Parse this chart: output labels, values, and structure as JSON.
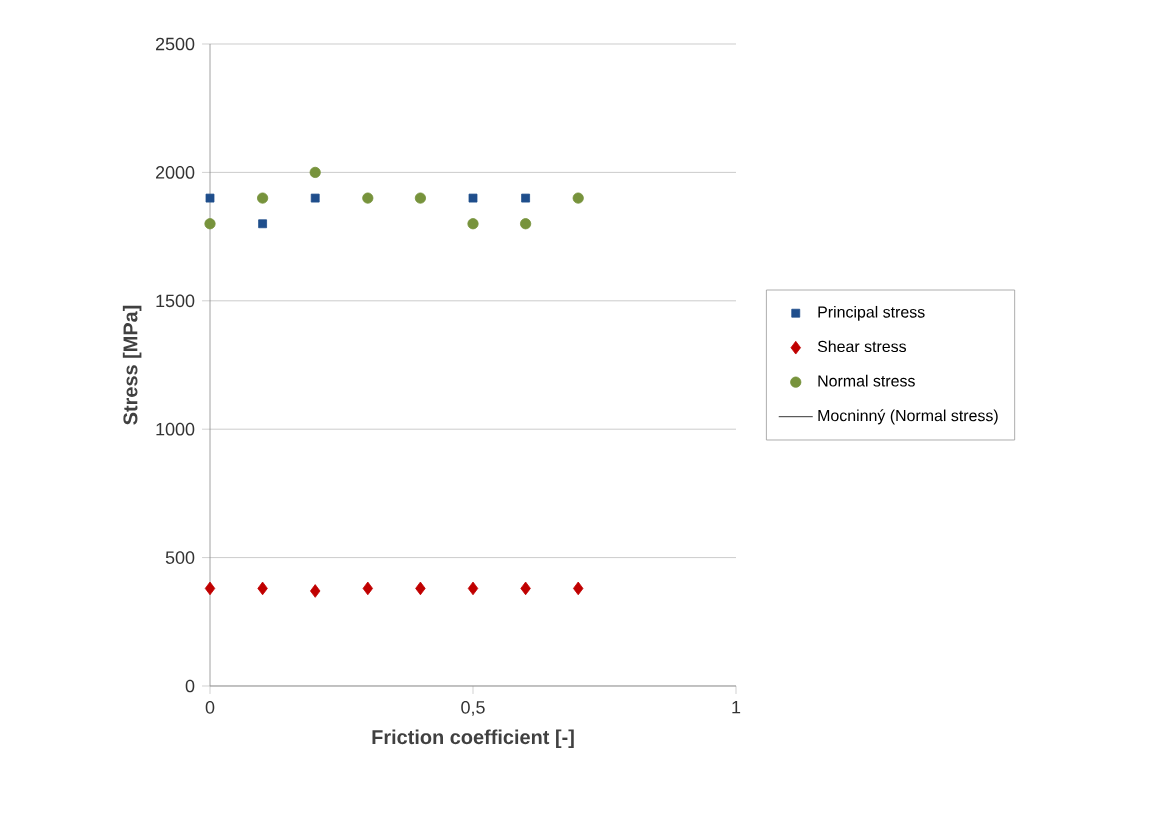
{
  "chart_data": {
    "type": "scatter",
    "xlabel": "Friction coefficient [-]",
    "ylabel": "Stress [MPa]",
    "x": [
      0,
      0.1,
      0.2,
      0.3,
      0.4,
      0.5,
      0.6,
      0.7
    ],
    "series": [
      {
        "name": "Principal stress",
        "color": "#1f4e8c",
        "marker": "square",
        "values": [
          1900,
          1800,
          1900,
          null,
          null,
          1900,
          1900,
          null
        ]
      },
      {
        "name": "Shear stress",
        "color": "#c00000",
        "marker": "diamond",
        "values": [
          380,
          380,
          370,
          380,
          380,
          380,
          380,
          380
        ]
      },
      {
        "name": "Normal stress",
        "color": "#77933c",
        "marker": "circle",
        "values": [
          1800,
          1900,
          2000,
          1900,
          1900,
          1800,
          1800,
          1900
        ]
      },
      {
        "name": "Mocninný (Normal stress)",
        "color": "#000000",
        "type": "line",
        "marker": "none",
        "values": [
          null,
          null,
          null,
          null,
          null,
          null,
          null,
          null
        ]
      }
    ],
    "xlim": [
      0,
      1
    ],
    "xticks": [
      0,
      {
        "value": 0.5,
        "label": "0,5"
      },
      1
    ],
    "ylim": [
      0,
      2500
    ],
    "yticks": [
      0,
      500,
      1000,
      1500,
      2000,
      2500
    ],
    "grid": "y",
    "legend": "right"
  }
}
